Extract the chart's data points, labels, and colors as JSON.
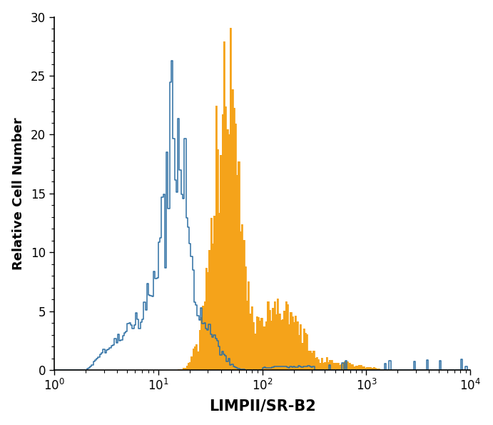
{
  "title": "",
  "xlabel": "LIMPII/SR-B2",
  "ylabel": "Relative Cell Number",
  "xlim": [
    1.0,
    10000.0
  ],
  "ylim": [
    0,
    30
  ],
  "yticks": [
    0,
    5,
    10,
    15,
    20,
    25,
    30
  ],
  "background_color": "#ffffff",
  "orange_fill": "#F5A31A",
  "blue_line": "#2E6FA3",
  "xlabel_fontsize": 15,
  "ylabel_fontsize": 13,
  "tick_fontsize": 12
}
